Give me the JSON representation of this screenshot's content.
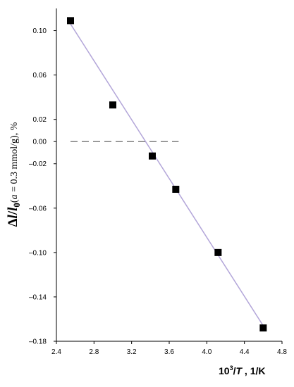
{
  "chart_data": {
    "type": "scatter",
    "xlabel_parts": [
      "10",
      "3",
      "/",
      "T",
      " , 1/K"
    ],
    "ylabel_parts": [
      "Δ",
      "l",
      "/",
      "l",
      "0",
      "(",
      "a",
      " = 0.3 mmol/g), %"
    ],
    "xlim": [
      2.4,
      4.8
    ],
    "ylim": [
      -0.18,
      0.12
    ],
    "x_ticks": [
      "2.4",
      "2.8",
      "3.2",
      "3.6",
      "4.0",
      "4.4",
      "4.8"
    ],
    "y_ticks": [
      "0.10",
      "0.06",
      "0.02",
      "0.00",
      "-0.02",
      "-0.06",
      "-0.10",
      "-0.14",
      "-0.18"
    ],
    "y_tick_values": [
      0.1,
      0.06,
      0.02,
      0.0,
      -0.02,
      -0.06,
      -0.1,
      -0.14,
      -0.18
    ],
    "points": [
      {
        "x": 2.55,
        "y": 0.109
      },
      {
        "x": 3.0,
        "y": 0.033
      },
      {
        "x": 3.42,
        "y": -0.013
      },
      {
        "x": 3.67,
        "y": -0.043
      },
      {
        "x": 4.12,
        "y": -0.1
      },
      {
        "x": 4.6,
        "y": -0.168
      }
    ],
    "fit_line": {
      "x": [
        2.55,
        4.6
      ],
      "y": [
        0.106,
        -0.166
      ],
      "color": "#b3a6d9"
    },
    "reference_line": {
      "y": 0.0,
      "x": [
        2.55,
        3.7
      ],
      "style": "dashed",
      "color": "#808080"
    },
    "grid": false,
    "marker": "square",
    "marker_color": "#000000"
  }
}
